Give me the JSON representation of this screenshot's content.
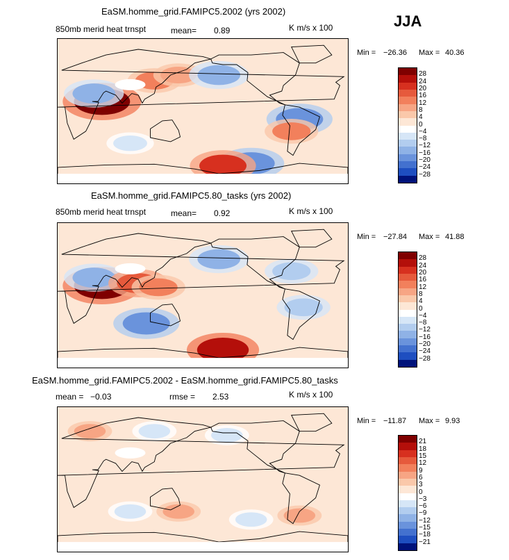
{
  "season": "JJA",
  "panels": [
    {
      "title": "EaSM.homme_grid.FAMIPC5.2002 (yrs 2002)",
      "left_label": "850mb merid heat trnspt",
      "stat1_label": "mean=",
      "stat1_value": "0.89",
      "stat2_label": "",
      "stat2_value": "",
      "units": "K m/s x 100",
      "min_label": "Min =",
      "min_value": "−26.36",
      "max_label": "Max =",
      "max_value": "40.36",
      "levels": [
        "28",
        "24",
        "20",
        "16",
        "12",
        "8",
        "4",
        "0",
        "−4",
        "−8",
        "−12",
        "−16",
        "−20",
        "−24",
        "−28"
      ]
    },
    {
      "title": "EaSM.homme_grid.FAMIPC5.80_tasks (yrs 2002)",
      "left_label": "850mb merid heat trnspt",
      "stat1_label": "mean=",
      "stat1_value": "0.92",
      "stat2_label": "",
      "stat2_value": "",
      "units": "K m/s x 100",
      "min_label": "Min =",
      "min_value": "−27.84",
      "max_label": "Max =",
      "max_value": "41.88",
      "levels": [
        "28",
        "24",
        "20",
        "16",
        "12",
        "8",
        "4",
        "0",
        "−4",
        "−8",
        "−12",
        "−16",
        "−20",
        "−24",
        "−28"
      ]
    },
    {
      "title": "EaSM.homme_grid.FAMIPC5.2002 - EaSM.homme_grid.FAMIPC5.80_tasks",
      "left_label": "",
      "stat1_label": "mean =",
      "stat1_value": "−0.03",
      "stat2_label": "rmse =",
      "stat2_value": "2.53",
      "units": "K m/s x 100",
      "min_label": "Min =",
      "min_value": "−11.87",
      "max_label": "Max =",
      "max_value": "9.93",
      "levels": [
        "21",
        "18",
        "15",
        "12",
        "9",
        "6",
        "3",
        "0",
        "−3",
        "−6",
        "−9",
        "−12",
        "−15",
        "−18",
        "−21"
      ]
    }
  ],
  "colors": {
    "palette": [
      "#7f0000",
      "#b40f0a",
      "#d7301f",
      "#e65a3c",
      "#f2805c",
      "#f7a584",
      "#fac8aa",
      "#fde7d6",
      "#ffffff",
      "#d6e6f7",
      "#b2cdef",
      "#8fb2e6",
      "#6a93dc",
      "#4371cf",
      "#1e4ec0",
      "#0a2fa0",
      "#00127a"
    ],
    "land_white": "#ffffff",
    "coast": "#000000"
  },
  "chart_data": [
    {
      "type": "heatmap",
      "title": "EaSM.homme_grid.FAMIPC5.2002 (yrs 2002)",
      "variable": "850mb merid heat trnspt",
      "units": "K m/s x 100",
      "mean": 0.89,
      "min": -26.36,
      "max": 40.36,
      "contour_levels": [
        -28,
        -24,
        -20,
        -16,
        -12,
        -8,
        -4,
        0,
        4,
        8,
        12,
        16,
        20,
        24,
        28
      ],
      "xlim": [
        0,
        360
      ],
      "ylim": [
        -90,
        90
      ],
      "features": [
        {
          "lon": 55,
          "lat": 12,
          "value": 28
        },
        {
          "lon": 45,
          "lat": 22,
          "value": -16
        },
        {
          "lon": 120,
          "lat": 38,
          "value": 12
        },
        {
          "lon": 150,
          "lat": 45,
          "value": 10
        },
        {
          "lon": 200,
          "lat": 45,
          "value": -16
        },
        {
          "lon": 300,
          "lat": -10,
          "value": -20
        },
        {
          "lon": 290,
          "lat": -25,
          "value": 12
        },
        {
          "lon": 240,
          "lat": -65,
          "value": -20
        },
        {
          "lon": 205,
          "lat": -68,
          "value": 20
        },
        {
          "lon": 90,
          "lat": -40,
          "value": -8
        }
      ]
    },
    {
      "type": "heatmap",
      "title": "EaSM.homme_grid.FAMIPC5.80_tasks (yrs 2002)",
      "variable": "850mb merid heat trnspt",
      "units": "K m/s x 100",
      "mean": 0.92,
      "min": -27.84,
      "max": 41.88,
      "contour_levels": [
        -28,
        -24,
        -20,
        -16,
        -12,
        -8,
        -4,
        0,
        4,
        8,
        12,
        16,
        20,
        24,
        28
      ],
      "xlim": [
        0,
        360
      ],
      "ylim": [
        -90,
        90
      ],
      "features": [
        {
          "lon": 55,
          "lat": 12,
          "value": 28
        },
        {
          "lon": 45,
          "lat": 22,
          "value": -16
        },
        {
          "lon": 100,
          "lat": 15,
          "value": 16
        },
        {
          "lon": 125,
          "lat": 10,
          "value": 12
        },
        {
          "lon": 200,
          "lat": 45,
          "value": -16
        },
        {
          "lon": 290,
          "lat": 30,
          "value": -12
        },
        {
          "lon": 110,
          "lat": -35,
          "value": -20
        },
        {
          "lon": 305,
          "lat": -15,
          "value": -12
        },
        {
          "lon": 205,
          "lat": -68,
          "value": 24
        }
      ]
    },
    {
      "type": "heatmap",
      "title": "EaSM.homme_grid.FAMIPC5.2002 - EaSM.homme_grid.FAMIPC5.80_tasks",
      "units": "K m/s x 100",
      "mean": -0.03,
      "rmse": 2.53,
      "min": -11.87,
      "max": 9.93,
      "contour_levels": [
        -21,
        -18,
        -15,
        -12,
        -9,
        -6,
        -3,
        0,
        3,
        6,
        9,
        12,
        15,
        18,
        21
      ],
      "xlim": [
        0,
        360
      ],
      "ylim": [
        -90,
        90
      ],
      "features": [
        {
          "lon": 40,
          "lat": 60,
          "value": 6
        },
        {
          "lon": 120,
          "lat": 60,
          "value": -6
        },
        {
          "lon": 210,
          "lat": 55,
          "value": -6
        },
        {
          "lon": 90,
          "lat": -40,
          "value": -6
        },
        {
          "lon": 150,
          "lat": -40,
          "value": 6
        },
        {
          "lon": 240,
          "lat": -50,
          "value": -6
        },
        {
          "lon": 300,
          "lat": -45,
          "value": 6
        }
      ]
    }
  ]
}
